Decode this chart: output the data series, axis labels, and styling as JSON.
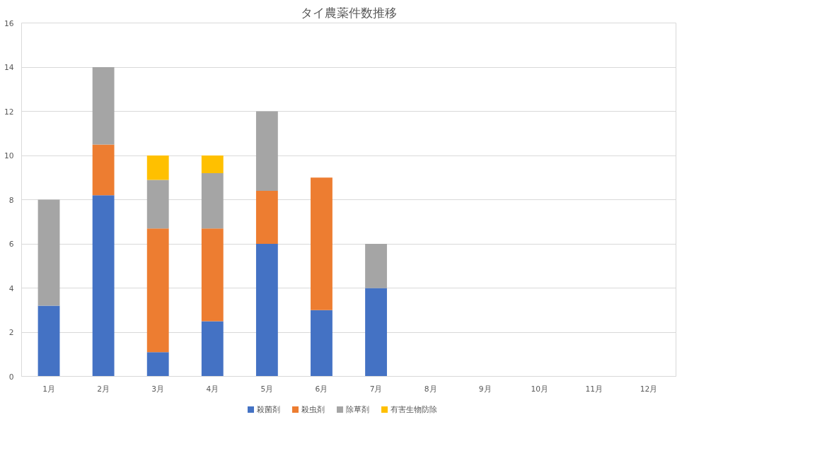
{
  "chart_data": {
    "type": "bar",
    "title": "タイ農薬件数推移",
    "stacked": true,
    "categories": [
      "1月",
      "2月",
      "3月",
      "4月",
      "5月",
      "6月",
      "7月",
      "8月",
      "9月",
      "10月",
      "11月",
      "12月"
    ],
    "series": [
      {
        "name": "殺菌剤",
        "color": "#4472c4",
        "values": [
          3.2,
          8.2,
          1.1,
          2.5,
          6,
          3,
          4,
          0,
          0,
          0,
          0,
          0
        ]
      },
      {
        "name": "殺虫剤",
        "color": "#ed7d31",
        "values": [
          0,
          2.3,
          5.6,
          4.2,
          2.4,
          6,
          0,
          0,
          0,
          0,
          0,
          0
        ]
      },
      {
        "name": "除草剤",
        "color": "#a5a5a5",
        "values": [
          4.8,
          3.5,
          2.2,
          2.5,
          3.6,
          0,
          2,
          0,
          0,
          0,
          0,
          0
        ]
      },
      {
        "name": "有害生物防除",
        "color": "#ffc000",
        "values": [
          0,
          0,
          1.1,
          0.8,
          0,
          0,
          0,
          0,
          0,
          0,
          0,
          0
        ]
      }
    ],
    "ylim": [
      0,
      16
    ],
    "yticks": [
      0,
      2,
      4,
      6,
      8,
      10,
      12,
      14,
      16
    ],
    "grid": "y",
    "legend": "bottom"
  }
}
